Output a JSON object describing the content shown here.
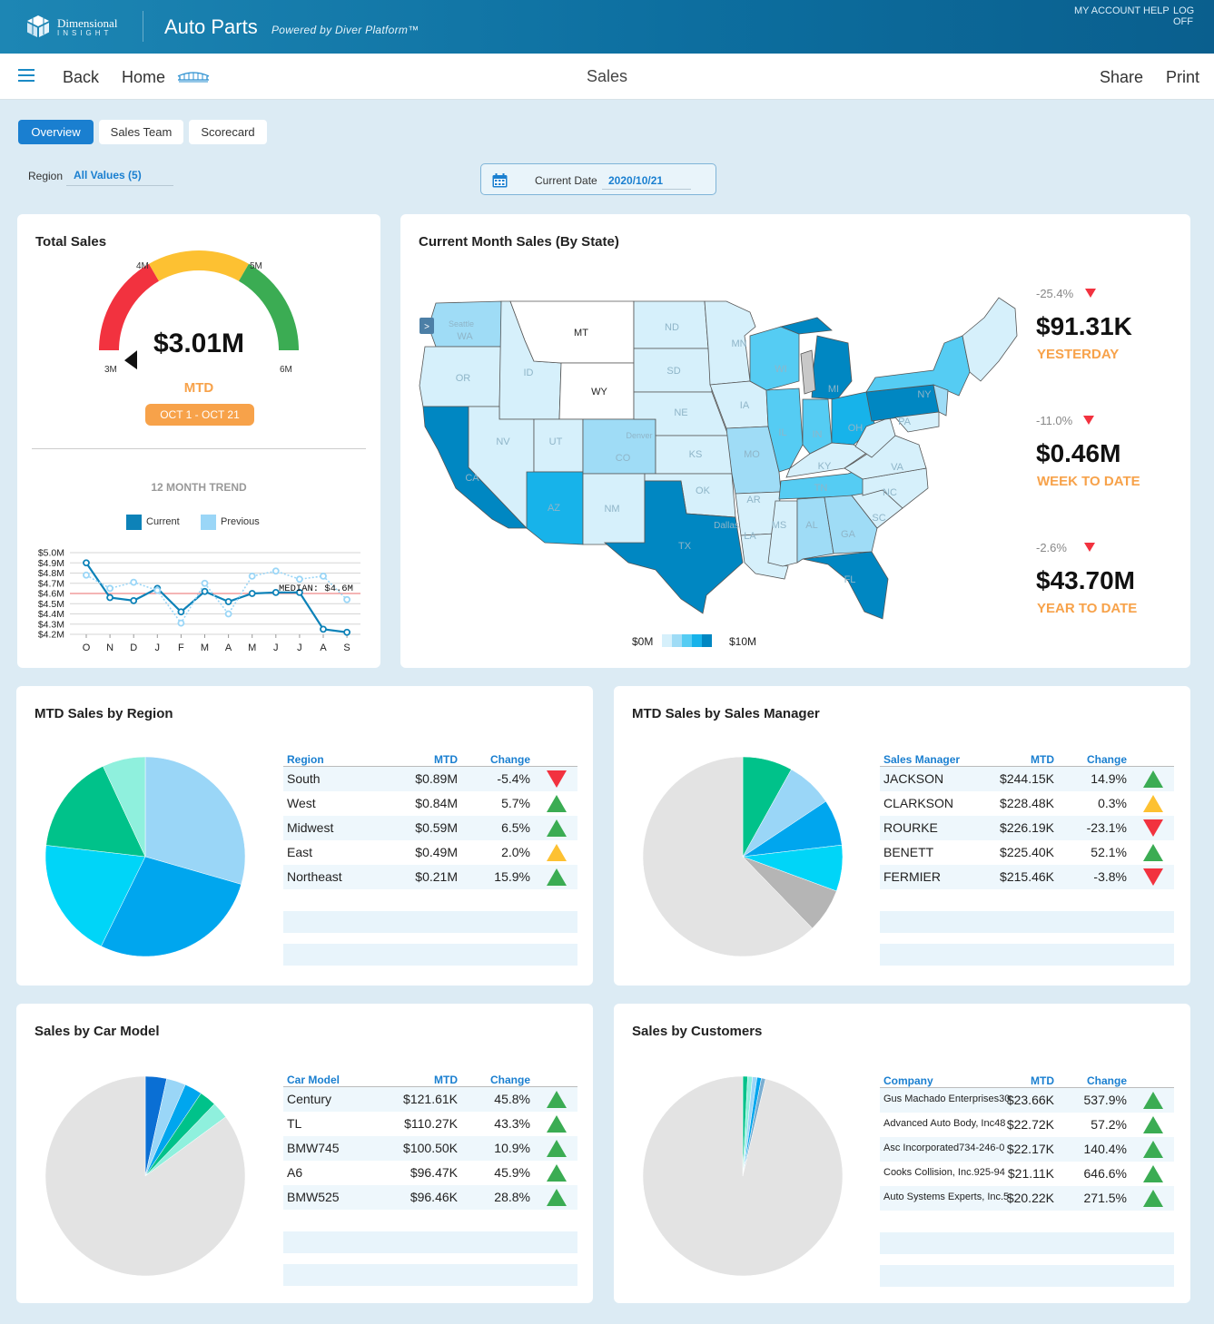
{
  "header": {
    "logo_name": "Dimensional",
    "logo_sub": "INSIGHT",
    "app_title": "Auto Parts",
    "powered_by": "Powered by Diver Platform™",
    "links": [
      "MY ACCOUNT",
      "HELP",
      "LOG OFF"
    ]
  },
  "nav": {
    "back": "Back",
    "home": "Home",
    "title": "Sales",
    "share": "Share",
    "print": "Print",
    "home_icon": "bridge-icon"
  },
  "tabs": [
    {
      "label": "Overview",
      "active": true
    },
    {
      "label": "Sales Team",
      "active": false
    },
    {
      "label": "Scorecard",
      "active": false
    }
  ],
  "filters": {
    "region_label": "Region",
    "region_value": "All Values (5)",
    "date_label": "Current Date",
    "date_value": "2020/10/21"
  },
  "total_sales": {
    "title": "Total Sales",
    "gauge": {
      "value_label": "$3.01M",
      "value": 3.01,
      "min": 3,
      "max": 6,
      "ticks": [
        "3M",
        "4M",
        "5M",
        "6M"
      ],
      "bands": [
        {
          "from": 3,
          "to": 4,
          "color": "#f2323f"
        },
        {
          "from": 4,
          "to": 5,
          "color": "#fdc132"
        },
        {
          "from": 5,
          "to": 6,
          "color": "#3bac53"
        }
      ]
    },
    "period_label": "MTD",
    "period_range": "OCT 1 - OCT 21",
    "trend_title": "12 MONTH TREND",
    "legend": [
      {
        "name": "Current",
        "color": "#0d82b8"
      },
      {
        "name": "Previous",
        "color": "#9ad6f7"
      }
    ]
  },
  "chart_data": [
    {
      "type": "line",
      "categories": [
        "O",
        "N",
        "D",
        "J",
        "F",
        "M",
        "A",
        "M",
        "J",
        "J",
        "A",
        "S"
      ],
      "series": [
        {
          "name": "Current",
          "values": [
            4.9,
            4.56,
            4.53,
            4.65,
            4.42,
            4.62,
            4.52,
            4.6,
            4.61,
            4.61,
            4.25,
            4.22
          ],
          "color": "#0d82b8"
        },
        {
          "name": "Previous",
          "values": [
            4.78,
            4.65,
            4.71,
            4.63,
            4.31,
            4.7,
            4.4,
            4.77,
            4.82,
            4.74,
            4.77,
            4.54
          ],
          "color": "#9ad6f7"
        }
      ],
      "yticks": [
        "$4.2M",
        "$4.3M",
        "$4.4M",
        "$4.5M",
        "$4.6M",
        "$4.7M",
        "$4.8M",
        "$4.9M",
        "$5.0M"
      ],
      "ylim": [
        4.2,
        5.0
      ],
      "median": 4.6,
      "median_label": "MEDIAN: $4.6M"
    },
    {
      "type": "pie",
      "title": "MTD Sales by Region",
      "labels": [
        "South",
        "West",
        "Midwest",
        "East",
        "Northeast"
      ],
      "values": [
        0.89,
        0.84,
        0.59,
        0.49,
        0.21
      ],
      "colors": [
        "#9ad6f7",
        "#00a6ee",
        "#00d5f8",
        "#00c28a",
        "#8ff0dd"
      ]
    },
    {
      "type": "pie",
      "title": "MTD Sales by Sales Manager",
      "labels": [
        "JACKSON",
        "CLARKSON",
        "ROURKE",
        "BENETT",
        "FERMIER",
        "Other"
      ],
      "values": [
        244.15,
        228.48,
        226.19,
        225.4,
        215.46,
        1880
      ],
      "colors": [
        "#00c28a",
        "#9ad6f7",
        "#00a6ee",
        "#00d5f8",
        "#b5b5b5",
        "#e3e3e3"
      ]
    },
    {
      "type": "pie",
      "title": "Sales by Car Model",
      "labels": [
        "Century",
        "TL",
        "BMW745",
        "A6",
        "BMW525",
        "Other"
      ],
      "values": [
        121.61,
        110.27,
        100.5,
        96.47,
        96.46,
        3000
      ],
      "colors": [
        "#0a6fd4",
        "#9ad6f7",
        "#00a6ee",
        "#00c28a",
        "#8ff0dd",
        "#e3e3e3"
      ]
    },
    {
      "type": "pie",
      "title": "Sales by Customers",
      "labels": [
        "Gus Machado Enterprises",
        "Advanced Auto Body, Inc.",
        "Asc Incorporated",
        "Cooks Collision, Inc.",
        "Auto Systems Experts, Inc.",
        "Other"
      ],
      "values": [
        23.66,
        22.72,
        22.17,
        21.11,
        20.22,
        2880
      ],
      "colors": [
        "#00c28a",
        "#8ff0dd",
        "#9ad6f7",
        "#00a6ee",
        "#7aaed1",
        "#e3e3e3"
      ]
    }
  ],
  "map": {
    "title": "Current Month Sales (By State)",
    "legend_min": "$0M",
    "legend_max": "$10M",
    "legend_colors": [
      "#d6f0fb",
      "#9fdcf6",
      "#55ccf3",
      "#17b3ea",
      "#0087c2"
    ],
    "labels": [
      "MT",
      "WY",
      "WA",
      "OR",
      "ID",
      "CA",
      "NV",
      "UT",
      "AZ",
      "CO",
      "NM",
      "ND",
      "SD",
      "NE",
      "KS",
      "OK",
      "TX",
      "MN",
      "IA",
      "MO",
      "AR",
      "LA",
      "WI",
      "IL",
      "IN",
      "MI",
      "OH",
      "KY",
      "TN",
      "MS",
      "AL",
      "GA",
      "FL",
      "SC",
      "NC",
      "VA",
      "PA",
      "NY",
      "Seattle",
      "Denver",
      "Dallas"
    ]
  },
  "kpis": [
    {
      "pct": "-25.4%",
      "value": "$91.31K",
      "label": "YESTERDAY"
    },
    {
      "pct": "-11.0%",
      "value": "$0.46M",
      "label": "WEEK TO DATE"
    },
    {
      "pct": "-2.6%",
      "value": "$43.70M",
      "label": "YEAR TO DATE"
    }
  ],
  "region_table": {
    "title": "MTD Sales by Region",
    "headers": [
      "Region",
      "MTD",
      "Change"
    ],
    "rows": [
      {
        "name": "South",
        "mtd": "$0.89M",
        "change": "-5.4%",
        "trend": "down"
      },
      {
        "name": "West",
        "mtd": "$0.84M",
        "change": "5.7%",
        "trend": "up"
      },
      {
        "name": "Midwest",
        "mtd": "$0.59M",
        "change": "6.5%",
        "trend": "up"
      },
      {
        "name": "East",
        "mtd": "$0.49M",
        "change": "2.0%",
        "trend": "flat"
      },
      {
        "name": "Northeast",
        "mtd": "$0.21M",
        "change": "15.9%",
        "trend": "up"
      }
    ]
  },
  "manager_table": {
    "title": "MTD Sales by Sales Manager",
    "headers": [
      "Sales Manager",
      "MTD",
      "Change"
    ],
    "rows": [
      {
        "name": "JACKSON",
        "mtd": "$244.15K",
        "change": "14.9%",
        "trend": "up"
      },
      {
        "name": "CLARKSON",
        "mtd": "$228.48K",
        "change": "0.3%",
        "trend": "flat"
      },
      {
        "name": "ROURKE",
        "mtd": "$226.19K",
        "change": "-23.1%",
        "trend": "down"
      },
      {
        "name": "BENETT",
        "mtd": "$225.40K",
        "change": "52.1%",
        "trend": "up"
      },
      {
        "name": "FERMIER",
        "mtd": "$215.46K",
        "change": "-3.8%",
        "trend": "down"
      }
    ]
  },
  "model_table": {
    "title": "Sales by Car Model",
    "headers": [
      "Car Model",
      "MTD",
      "Change"
    ],
    "rows": [
      {
        "name": "Century",
        "mtd": "$121.61K",
        "change": "45.8%",
        "trend": "up"
      },
      {
        "name": "TL",
        "mtd": "$110.27K",
        "change": "43.3%",
        "trend": "up"
      },
      {
        "name": "BMW745",
        "mtd": "$100.50K",
        "change": "10.9%",
        "trend": "up"
      },
      {
        "name": "A6",
        "mtd": "$96.47K",
        "change": "45.9%",
        "trend": "up"
      },
      {
        "name": "BMW525",
        "mtd": "$96.46K",
        "change": "28.8%",
        "trend": "up"
      }
    ]
  },
  "customer_table": {
    "title": "Sales by Customers",
    "headers": [
      "Company",
      "MTD",
      "Change"
    ],
    "rows": [
      {
        "name": "Gus Machado Enterprises30",
        "mtd": "$23.66K",
        "change": "537.9%",
        "trend": "up"
      },
      {
        "name": "Advanced Auto Body, Inc48",
        "mtd": "$22.72K",
        "change": "57.2%",
        "trend": "up"
      },
      {
        "name": "Asc Incorporated734-246-0",
        "mtd": "$22.17K",
        "change": "140.4%",
        "trend": "up"
      },
      {
        "name": "Cooks Collision, Inc.925-94",
        "mtd": "$21.11K",
        "change": "646.6%",
        "trend": "up"
      },
      {
        "name": "Auto Systems Experts, Inc.5",
        "mtd": "$20.22K",
        "change": "271.5%",
        "trend": "up"
      }
    ]
  },
  "trend_colors": {
    "up": "#3bac53",
    "down": "#f2323f",
    "flat": "#fdc132"
  }
}
